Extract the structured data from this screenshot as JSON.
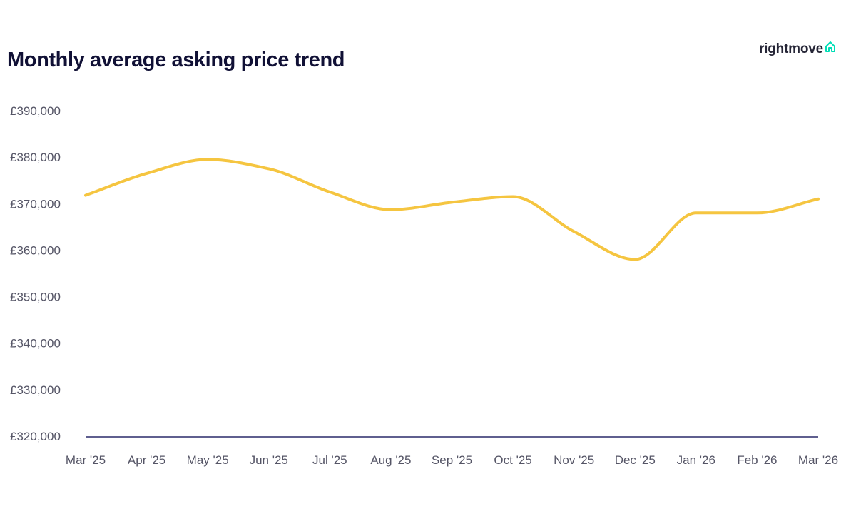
{
  "brand": {
    "name": "rightmove",
    "accent_color": "#00deb6"
  },
  "chart_data": {
    "type": "line",
    "title": "Monthly average asking price trend",
    "xlabel": "",
    "ylabel": "",
    "categories": [
      "Mar '25",
      "Apr '25",
      "May '25",
      "Jun '25",
      "Jul '25",
      "Aug '25",
      "Sep '25",
      "Oct '25",
      "Nov '25",
      "Dec '25",
      "Jan '26",
      "Feb '26",
      "Mar '26"
    ],
    "series": [
      {
        "name": "Average asking price",
        "color": "#f5c540",
        "values": [
          371796,
          376500,
          379500,
          377500,
          372500,
          368700,
          370300,
          371500,
          364000,
          358000,
          368000,
          368000,
          371000
        ]
      }
    ],
    "yticks": [
      320000,
      330000,
      340000,
      350000,
      360000,
      370000,
      380000,
      390000
    ],
    "ytick_labels": [
      "£320,000",
      "£330,000",
      "£340,000",
      "£350,000",
      "£360,000",
      "£370,000",
      "£380,000",
      "£390,000"
    ],
    "ylim": [
      320000,
      390000
    ],
    "grid": false,
    "axis_color": "#2a2a6a",
    "label_color": "#555566"
  }
}
